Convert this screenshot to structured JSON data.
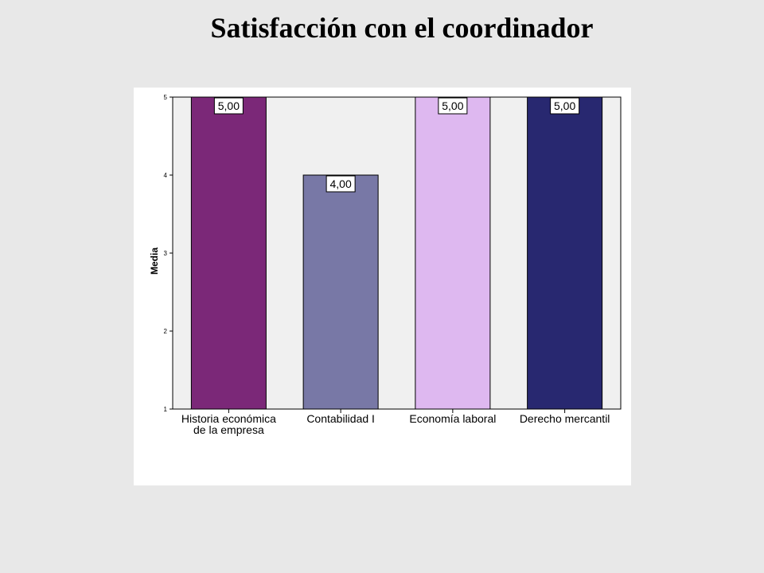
{
  "title": "Satisfacción con el coordinador",
  "chart_data": {
    "type": "bar",
    "categories": [
      "Historia económica de la empresa",
      "Contabilidad I",
      "Economía laboral",
      "Derecho mercantil"
    ],
    "values": [
      5.0,
      4.0,
      5.0,
      5.0
    ],
    "data_labels": [
      "5,00",
      "4,00",
      "5,00",
      "5,00"
    ],
    "bar_colors": [
      "#7b2878",
      "#7878a6",
      "#deb8f0",
      "#282870"
    ],
    "plot_background": "#f0f0f0",
    "ylabel": "Media",
    "xlabel": "",
    "ylim": [
      1,
      5
    ],
    "yticks": [
      1,
      2,
      3,
      4,
      5
    ],
    "grid": false,
    "legend": "none"
  }
}
